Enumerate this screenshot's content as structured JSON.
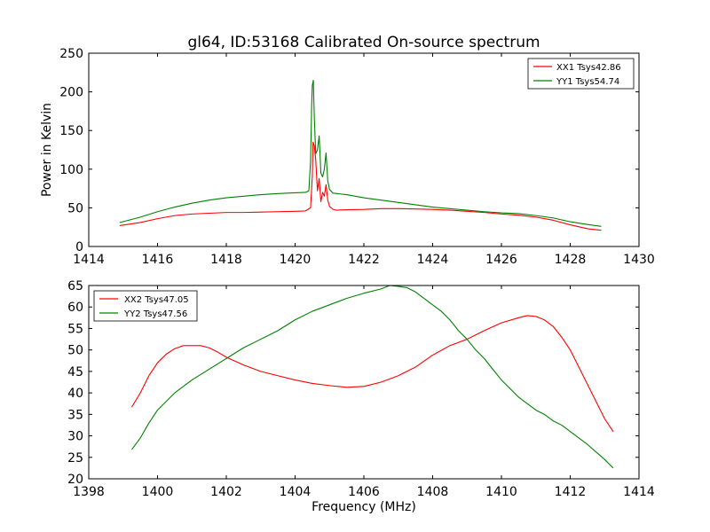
{
  "title": "gl64, ID:53168 Calibrated On-source spectrum",
  "colors": {
    "XX": "#ff0000",
    "YY": "#008000"
  },
  "chart_data": [
    {
      "type": "line",
      "ylabel": "Power in Kelvin",
      "xlabel": "",
      "xlim": [
        1414,
        1430
      ],
      "ylim": [
        0,
        250
      ],
      "xticks": [
        1414,
        1416,
        1418,
        1420,
        1422,
        1424,
        1426,
        1428,
        1430
      ],
      "yticks": [
        0,
        50,
        100,
        150,
        200,
        250
      ],
      "legend_position": "top-right",
      "series": [
        {
          "name": "XX1 Tsys42.86",
          "color": "#ff0000",
          "points": [
            [
              1414.9,
              27
            ],
            [
              1415.5,
              31
            ],
            [
              1416.0,
              36
            ],
            [
              1416.5,
              40
            ],
            [
              1417.0,
              42
            ],
            [
              1417.5,
              43
            ],
            [
              1418.0,
              44
            ],
            [
              1418.5,
              44
            ],
            [
              1419.0,
              44.5
            ],
            [
              1419.5,
              45
            ],
            [
              1420.0,
              45.5
            ],
            [
              1420.3,
              46
            ],
            [
              1420.45,
              50
            ],
            [
              1420.5,
              90
            ],
            [
              1420.52,
              135
            ],
            [
              1420.56,
              130
            ],
            [
              1420.6,
              112
            ],
            [
              1420.65,
              72
            ],
            [
              1420.7,
              88
            ],
            [
              1420.75,
              58
            ],
            [
              1420.8,
              70
            ],
            [
              1420.85,
              65
            ],
            [
              1420.9,
              80
            ],
            [
              1420.95,
              60
            ],
            [
              1421.0,
              52
            ],
            [
              1421.1,
              48
            ],
            [
              1421.2,
              47
            ],
            [
              1421.5,
              47.5
            ],
            [
              1422.0,
              48
            ],
            [
              1422.5,
              49
            ],
            [
              1423.0,
              49
            ],
            [
              1423.5,
              48.5
            ],
            [
              1424.0,
              48
            ],
            [
              1424.5,
              47
            ],
            [
              1425.0,
              45.5
            ],
            [
              1425.5,
              44
            ],
            [
              1426.0,
              42
            ],
            [
              1426.5,
              40.5
            ],
            [
              1427.0,
              38
            ],
            [
              1427.5,
              34
            ],
            [
              1428.0,
              28
            ],
            [
              1428.5,
              23
            ],
            [
              1428.9,
              21
            ]
          ]
        },
        {
          "name": "YY1 Tsys54.74",
          "color": "#008000",
          "points": [
            [
              1414.9,
              31
            ],
            [
              1415.5,
              38
            ],
            [
              1416.0,
              45
            ],
            [
              1416.5,
              51
            ],
            [
              1417.0,
              56
            ],
            [
              1417.5,
              60
            ],
            [
              1418.0,
              63
            ],
            [
              1418.5,
              65
            ],
            [
              1419.0,
              67
            ],
            [
              1419.5,
              68.5
            ],
            [
              1420.0,
              69.5
            ],
            [
              1420.3,
              70
            ],
            [
              1420.4,
              72
            ],
            [
              1420.45,
              110
            ],
            [
              1420.48,
              180
            ],
            [
              1420.5,
              208
            ],
            [
              1420.53,
              215
            ],
            [
              1420.56,
              165
            ],
            [
              1420.6,
              120
            ],
            [
              1420.65,
              125
            ],
            [
              1420.7,
              143
            ],
            [
              1420.75,
              95
            ],
            [
              1420.8,
              90
            ],
            [
              1420.85,
              100
            ],
            [
              1420.9,
              121
            ],
            [
              1420.95,
              85
            ],
            [
              1421.0,
              74
            ],
            [
              1421.1,
              69
            ],
            [
              1421.5,
              67
            ],
            [
              1422.0,
              63
            ],
            [
              1422.5,
              60
            ],
            [
              1423.0,
              57
            ],
            [
              1423.5,
              54
            ],
            [
              1424.0,
              51
            ],
            [
              1424.5,
              49
            ],
            [
              1425.0,
              47
            ],
            [
              1425.5,
              45
            ],
            [
              1426.0,
              43.5
            ],
            [
              1426.5,
              42.5
            ],
            [
              1427.0,
              40
            ],
            [
              1427.5,
              37
            ],
            [
              1428.0,
              32
            ],
            [
              1428.5,
              28.5
            ],
            [
              1428.9,
              26
            ]
          ]
        }
      ]
    },
    {
      "type": "line",
      "ylabel": "",
      "xlabel": "Frequency (MHz)",
      "xlim": [
        1398,
        1414
      ],
      "ylim": [
        20,
        65
      ],
      "xticks": [
        1398,
        1400,
        1402,
        1404,
        1406,
        1408,
        1410,
        1412,
        1414
      ],
      "yticks": [
        20,
        25,
        30,
        35,
        40,
        45,
        50,
        55,
        60,
        65
      ],
      "legend_position": "top-left",
      "series": [
        {
          "name": "XX2 Tsys47.05",
          "color": "#ff0000",
          "points": [
            [
              1399.25,
              36.7
            ],
            [
              1399.5,
              40
            ],
            [
              1399.75,
              44
            ],
            [
              1400.0,
              47
            ],
            [
              1400.25,
              49
            ],
            [
              1400.5,
              50.3
            ],
            [
              1400.75,
              51
            ],
            [
              1401.0,
              51
            ],
            [
              1401.25,
              51
            ],
            [
              1401.5,
              50.5
            ],
            [
              1401.75,
              49.5
            ],
            [
              1402.0,
              48.3
            ],
            [
              1402.5,
              46.5
            ],
            [
              1403.0,
              45
            ],
            [
              1403.5,
              44
            ],
            [
              1404.0,
              43
            ],
            [
              1404.5,
              42.2
            ],
            [
              1405.0,
              41.7
            ],
            [
              1405.5,
              41.3
            ],
            [
              1406.0,
              41.5
            ],
            [
              1406.5,
              42.5
            ],
            [
              1407.0,
              44
            ],
            [
              1407.5,
              46
            ],
            [
              1408.0,
              48.8
            ],
            [
              1408.5,
              51
            ],
            [
              1409.0,
              52.5
            ],
            [
              1409.5,
              54.5
            ],
            [
              1410.0,
              56.3
            ],
            [
              1410.5,
              57.5
            ],
            [
              1410.75,
              58
            ],
            [
              1411.0,
              57.8
            ],
            [
              1411.25,
              57
            ],
            [
              1411.5,
              55.5
            ],
            [
              1411.75,
              53
            ],
            [
              1412.0,
              50
            ],
            [
              1412.25,
              46
            ],
            [
              1412.5,
              42
            ],
            [
              1412.75,
              38
            ],
            [
              1413.0,
              34
            ],
            [
              1413.25,
              31
            ]
          ]
        },
        {
          "name": "YY2 Tsys47.56",
          "color": "#008000",
          "points": [
            [
              1399.25,
              26.8
            ],
            [
              1399.5,
              29.5
            ],
            [
              1399.75,
              33
            ],
            [
              1400.0,
              36
            ],
            [
              1400.5,
              40
            ],
            [
              1401.0,
              43
            ],
            [
              1401.5,
              45.5
            ],
            [
              1402.0,
              48
            ],
            [
              1402.5,
              50.5
            ],
            [
              1403.0,
              52.5
            ],
            [
              1403.5,
              54.5
            ],
            [
              1404.0,
              57
            ],
            [
              1404.5,
              59
            ],
            [
              1405.0,
              60.5
            ],
            [
              1405.5,
              62
            ],
            [
              1406.0,
              63.2
            ],
            [
              1406.5,
              64.2
            ],
            [
              1406.75,
              65
            ],
            [
              1407.0,
              64.8
            ],
            [
              1407.25,
              64.5
            ],
            [
              1407.5,
              63.5
            ],
            [
              1407.75,
              62
            ],
            [
              1408.0,
              60.5
            ],
            [
              1408.25,
              59
            ],
            [
              1408.5,
              57
            ],
            [
              1408.75,
              54.5
            ],
            [
              1409.0,
              52.5
            ],
            [
              1409.25,
              50
            ],
            [
              1409.5,
              48
            ],
            [
              1409.75,
              45.5
            ],
            [
              1410.0,
              43
            ],
            [
              1410.25,
              41
            ],
            [
              1410.5,
              39
            ],
            [
              1410.75,
              37.5
            ],
            [
              1411.0,
              36
            ],
            [
              1411.25,
              35
            ],
            [
              1411.5,
              33.5
            ],
            [
              1411.75,
              32.5
            ],
            [
              1412.0,
              31
            ],
            [
              1412.5,
              28
            ],
            [
              1413.0,
              24.5
            ],
            [
              1413.25,
              22.5
            ]
          ]
        }
      ]
    }
  ]
}
